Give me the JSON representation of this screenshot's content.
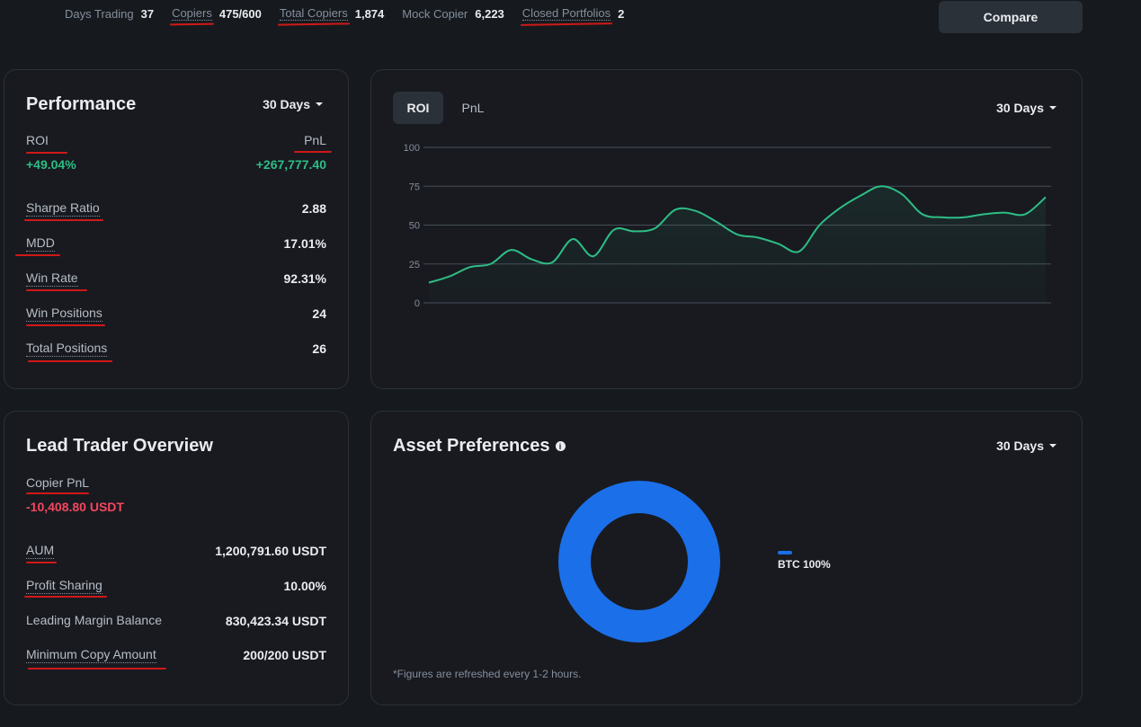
{
  "stats": [
    {
      "label": "Days Trading",
      "value": "37"
    },
    {
      "label": "Copiers",
      "value": "475/600"
    },
    {
      "label": "Total Copiers",
      "value": "1,874"
    },
    {
      "label": "Mock Copier",
      "value": "6,223"
    },
    {
      "label": "Closed Portfolios",
      "value": "2"
    }
  ],
  "compare_label": "Compare",
  "performance": {
    "title": "Performance",
    "period": "30 Days",
    "roi_label": "ROI",
    "roi_value": "+49.04%",
    "pnl_label": "PnL",
    "pnl_value": "+267,777.40",
    "rows": [
      {
        "label": "Sharpe Ratio",
        "value": "2.88"
      },
      {
        "label": "MDD",
        "value": "17.01%"
      },
      {
        "label": "Win Rate",
        "value": "92.31%"
      },
      {
        "label": "Win Positions",
        "value": "24"
      },
      {
        "label": "Total Positions",
        "value": "26"
      }
    ]
  },
  "chart_panel": {
    "tabs": [
      "ROI",
      "PnL"
    ],
    "period": "30 Days"
  },
  "chart_data": {
    "type": "line",
    "title": "ROI",
    "xlabel": "",
    "ylabel": "",
    "ylim": [
      0,
      100
    ],
    "yticks": [
      100,
      75,
      50,
      25,
      0
    ],
    "series": [
      {
        "name": "ROI",
        "values": [
          13,
          17,
          23,
          25,
          34,
          28,
          26,
          41,
          30,
          47,
          46,
          48,
          60,
          59,
          52,
          44,
          42,
          38,
          33,
          50,
          61,
          69,
          75,
          70,
          57,
          55,
          55,
          57,
          58,
          57,
          68
        ]
      }
    ],
    "color": "#2ebd85"
  },
  "lead_overview": {
    "title": "Lead Trader Overview",
    "copier_pnl_label": "Copier PnL",
    "copier_pnl_value": "-10,408.80 USDT",
    "rows": [
      {
        "label": "AUM",
        "value": "1,200,791.60 USDT"
      },
      {
        "label": "Profit Sharing",
        "value": "10.00%"
      },
      {
        "label": "Leading Margin Balance",
        "value": "830,423.34 USDT"
      },
      {
        "label": "Minimum Copy Amount",
        "value": "200/200 USDT"
      }
    ]
  },
  "asset_prefs": {
    "title": "Asset Preferences",
    "period": "30 Days",
    "legend": "BTC 100%",
    "footnote": "*Figures are refreshed every 1-2 hours.",
    "slices": [
      {
        "name": "BTC",
        "value": 100,
        "color": "#1b6fe8"
      }
    ]
  }
}
